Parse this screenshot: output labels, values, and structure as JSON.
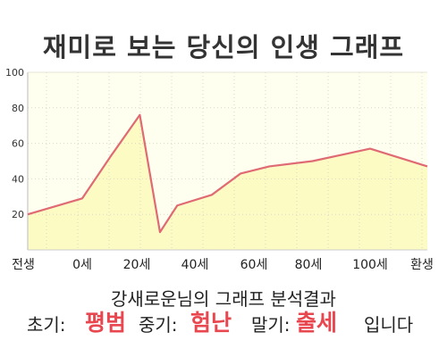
{
  "title": "재미로 보는 당신의 인생 그래프",
  "colors": {
    "line": "#e06a74",
    "fill": "#fdfbc4",
    "plot_bg": "#fffff0",
    "grid": "#d9d9c8",
    "highlight": "#e8474f"
  },
  "chart_data": {
    "type": "area",
    "x_tick_labels": [
      "전생",
      "0세",
      "20세",
      "40세",
      "60세",
      "80세",
      "100세",
      "환생"
    ],
    "y_tick_labels": [
      "20",
      "40",
      "60",
      "80",
      "100"
    ],
    "ylim": [
      0,
      100
    ],
    "grid": true,
    "series": [
      {
        "x": [
          "전생",
          0,
          10,
          20,
          27,
          33,
          45,
          55,
          65,
          80,
          100,
          "환생"
        ],
        "values": [
          20,
          29,
          53,
          76,
          10,
          25,
          31,
          43,
          47,
          50,
          57,
          47
        ]
      }
    ]
  },
  "result": {
    "heading": "강새로운님의 그래프 분석결과",
    "early_label": "초기:",
    "early_value": "평범",
    "mid_label": "중기:",
    "mid_value": "험난",
    "late_label": "말기:",
    "late_value": "출세",
    "suffix": "입니다"
  }
}
